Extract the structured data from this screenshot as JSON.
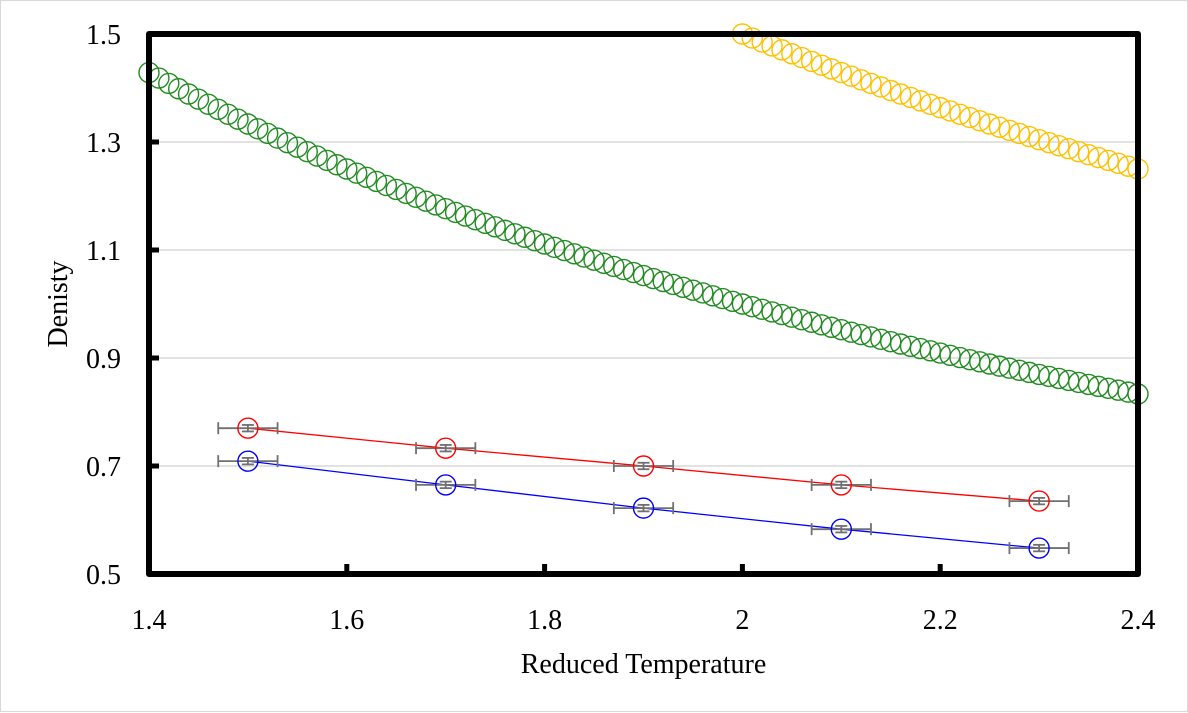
{
  "chart_data": {
    "type": "scatter",
    "title": "",
    "xlabel": "Reduced Temperature",
    "ylabel": "Denisty",
    "xlim": [
      1.4,
      2.4
    ],
    "ylim": [
      0.5,
      1.5
    ],
    "x_ticks": [
      1.4,
      1.6,
      1.8,
      2.0,
      2.2,
      2.4
    ],
    "x_tick_labels": [
      "1.4",
      "1.6",
      "1.8",
      "2",
      "2.2",
      "2.4"
    ],
    "y_ticks": [
      0.5,
      0.7,
      0.9,
      1.1,
      1.3,
      1.5
    ],
    "y_tick_labels": [
      "0.5",
      "0.7",
      "0.9",
      "1.1",
      "1.3",
      "1.5"
    ],
    "grid": "horizontal",
    "legend": "none",
    "series": [
      {
        "name": "green-curve",
        "color": "#228B22",
        "marker": "open-circle",
        "line": false,
        "formula": "2/T",
        "x_start": 1.4,
        "x_end": 2.4,
        "x_step": 0.01
      },
      {
        "name": "yellow-curve",
        "color": "#FFC000",
        "marker": "open-circle",
        "line": false,
        "formula": "3/T",
        "x_start": 2.0,
        "x_end": 2.4,
        "x_step": 0.01
      },
      {
        "name": "red-series",
        "color": "#FF0000",
        "marker": "open-circle",
        "line": true,
        "x": [
          1.5,
          1.7,
          1.9,
          2.1,
          2.3
        ],
        "y": [
          0.77,
          0.733,
          0.7,
          0.665,
          0.635
        ],
        "x_err": [
          0.03,
          0.03,
          0.03,
          0.03,
          0.03
        ],
        "y_err": [
          0.006,
          0.006,
          0.006,
          0.006,
          0.006
        ]
      },
      {
        "name": "blue-series",
        "color": "#0000FF",
        "marker": "open-circle",
        "line": true,
        "x": [
          1.5,
          1.7,
          1.9,
          2.1,
          2.3
        ],
        "y": [
          0.709,
          0.665,
          0.622,
          0.583,
          0.548
        ],
        "x_err": [
          0.03,
          0.03,
          0.03,
          0.03,
          0.03
        ],
        "y_err": [
          0.006,
          0.006,
          0.006,
          0.006,
          0.006
        ]
      }
    ],
    "error_bar_color": "#707070",
    "gridline_color": "#d9d9d9",
    "frame_color": "#000000"
  }
}
